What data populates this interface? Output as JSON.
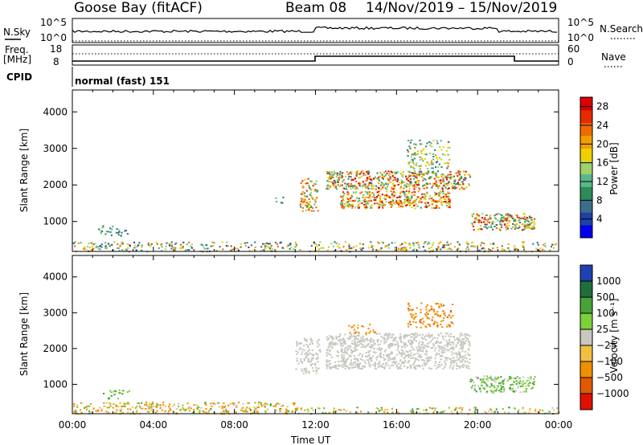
{
  "header": {
    "station": "Goose Bay (fitACF)",
    "beam": "Beam 08",
    "date_range": "14/Nov/2019 – 15/Nov/2019"
  },
  "aux_panels": {
    "nsky": {
      "label": "N.Sky",
      "tick_top": "10^5",
      "tick_bottom": "10^0",
      "right_tick_top": "10^5",
      "right_tick_bottom": "10^0",
      "right_label": "N.Search"
    },
    "freq": {
      "label_line1": "Freq.",
      "label_line2": "[MHz]",
      "tick_top": "18",
      "tick_bottom": "8",
      "right_tick_top": "60",
      "right_tick_bottom": "0",
      "right_label": "Nave"
    },
    "cpid": {
      "label": "CPID",
      "value": "normal (fast) 151"
    }
  },
  "colors": {
    "power_scale": [
      "#0000ee",
      "#1f3fa8",
      "#3b6e8a",
      "#2e8b57",
      "#59b88a",
      "#9ed36a",
      "#f0d000",
      "#f2a000",
      "#f06a00",
      "#e62a00",
      "#dd0000"
    ],
    "velocity_scale": [
      "#2040b0",
      "#1f6f3c",
      "#47a23a",
      "#7bd13a",
      "#c8c8c0",
      "#f2c040",
      "#f09000",
      "#e05a00",
      "#e01000"
    ]
  },
  "chart_data": [
    {
      "type": "heatmap",
      "name": "power",
      "ylabel": "Slant Range [km]",
      "ylim": [
        180,
        4600
      ],
      "yticks": [
        "1000",
        "2000",
        "3000",
        "4000"
      ],
      "xlim_hours": [
        0,
        24
      ],
      "colorbar": {
        "label": "Power [dB]",
        "ticks": [
          "4",
          "8",
          "12",
          "16",
          "20",
          "24",
          "28"
        ],
        "range": [
          0,
          30
        ]
      },
      "patches": [
        {
          "t0": 0.0,
          "t1": 24.0,
          "r0": 190,
          "r1": 460,
          "v0": 4,
          "v1": 24,
          "density": 0.35
        },
        {
          "t0": 11.2,
          "t1": 12.1,
          "r0": 1300,
          "r1": 2200,
          "v0": 8,
          "v1": 26,
          "density": 0.55
        },
        {
          "t0": 12.5,
          "t1": 19.6,
          "r0": 1900,
          "r1": 2400,
          "v0": 6,
          "v1": 30,
          "density": 0.75
        },
        {
          "t0": 13.2,
          "t1": 18.6,
          "r0": 1380,
          "r1": 1850,
          "v0": 10,
          "v1": 30,
          "density": 0.8
        },
        {
          "t0": 16.5,
          "t1": 18.6,
          "r0": 2450,
          "r1": 3250,
          "v0": 6,
          "v1": 22,
          "density": 0.35
        },
        {
          "t0": 19.6,
          "t1": 22.8,
          "r0": 780,
          "r1": 1250,
          "v0": 6,
          "v1": 30,
          "density": 0.7
        },
        {
          "t0": 1.2,
          "t1": 2.8,
          "r0": 620,
          "r1": 900,
          "v0": 4,
          "v1": 14,
          "density": 0.3
        },
        {
          "t0": 10.0,
          "t1": 10.5,
          "r0": 1500,
          "r1": 1700,
          "v0": 4,
          "v1": 14,
          "density": 0.25
        }
      ]
    },
    {
      "type": "heatmap",
      "name": "velocity",
      "ylabel": "Slant Range [km]",
      "ylim": [
        180,
        4600
      ],
      "yticks": [
        "1000",
        "2000",
        "3000",
        "4000"
      ],
      "xlim_hours": [
        0,
        24
      ],
      "xticks": [
        "00:00",
        "04:00",
        "08:00",
        "12:00",
        "16:00",
        "20:00",
        "00:00"
      ],
      "xlabel": "Time UT",
      "colorbar": {
        "label": "Velocity [m s⁻¹]",
        "ticks": [
          "1000",
          "500",
          "100",
          "25",
          "−25",
          "−100",
          "−500",
          "−1000"
        ]
      },
      "patches": [
        {
          "t0": 0.0,
          "t1": 11.0,
          "r0": 190,
          "r1": 520,
          "v0": -300,
          "v1": 150,
          "density": 0.45
        },
        {
          "t0": 11.0,
          "t1": 24.0,
          "r0": 190,
          "r1": 380,
          "v0": -200,
          "v1": 200,
          "density": 0.3
        },
        {
          "t0": 11.0,
          "t1": 12.2,
          "r0": 1300,
          "r1": 2300,
          "v0": -20,
          "v1": 20,
          "density": 0.5
        },
        {
          "t0": 12.5,
          "t1": 19.6,
          "r0": 1450,
          "r1": 2450,
          "v0": -20,
          "v1": 20,
          "density": 0.7
        },
        {
          "t0": 16.5,
          "t1": 18.8,
          "r0": 2600,
          "r1": 3300,
          "v0": -600,
          "v1": -100,
          "density": 0.35
        },
        {
          "t0": 13.6,
          "t1": 15.0,
          "r0": 2400,
          "r1": 2750,
          "v0": -500,
          "v1": -80,
          "density": 0.25
        },
        {
          "t0": 19.6,
          "t1": 22.8,
          "r0": 780,
          "r1": 1250,
          "v0": -20,
          "v1": 150,
          "density": 0.6
        },
        {
          "t0": 1.5,
          "t1": 2.8,
          "r0": 620,
          "r1": 880,
          "v0": 30,
          "v1": 200,
          "density": 0.3
        }
      ]
    }
  ]
}
